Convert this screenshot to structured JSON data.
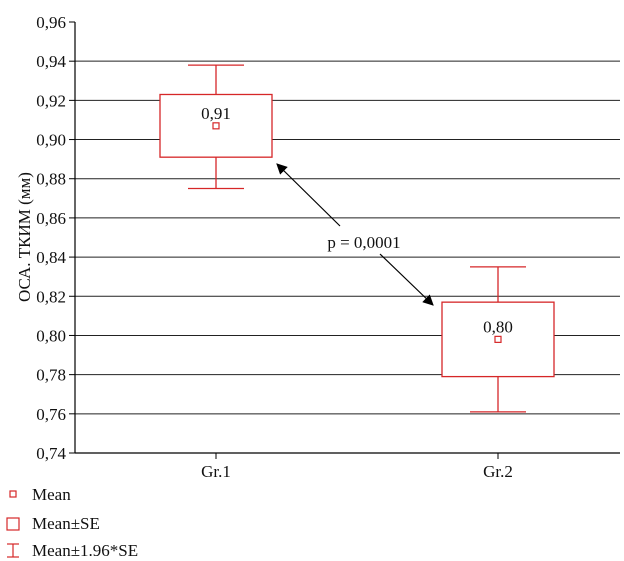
{
  "chart_data": {
    "type": "box",
    "ylabel": "ОСА. ТКИМ (мм)",
    "xlabel": "",
    "ylim": [
      0.74,
      0.96
    ],
    "yticks": [
      "0,74",
      "0,76",
      "0,78",
      "0,80",
      "0,82",
      "0,84",
      "0,86",
      "0,88",
      "0,90",
      "0,92",
      "0,94",
      "0,96"
    ],
    "grid": true,
    "categories": [
      "Gr.1",
      "Gr.2"
    ],
    "groups": [
      {
        "category": "Gr.1",
        "mean": 0.907,
        "se_low": 0.891,
        "se_high": 0.923,
        "ci_low": 0.875,
        "ci_high": 0.938,
        "label": "0,91"
      },
      {
        "category": "Gr.2",
        "mean": 0.798,
        "se_low": 0.779,
        "se_high": 0.817,
        "ci_low": 0.761,
        "ci_high": 0.835,
        "label": "0,80"
      }
    ],
    "annotation": {
      "text": "p = 0,0001"
    },
    "legend": {
      "placement": "bottom-left",
      "entries": [
        "Mean",
        "Mean±SE",
        "Mean±1.96*SE"
      ]
    },
    "colors": {
      "box": "#d62728",
      "grid": "#222222",
      "axis": "#000000",
      "arrow": "#000000"
    }
  }
}
